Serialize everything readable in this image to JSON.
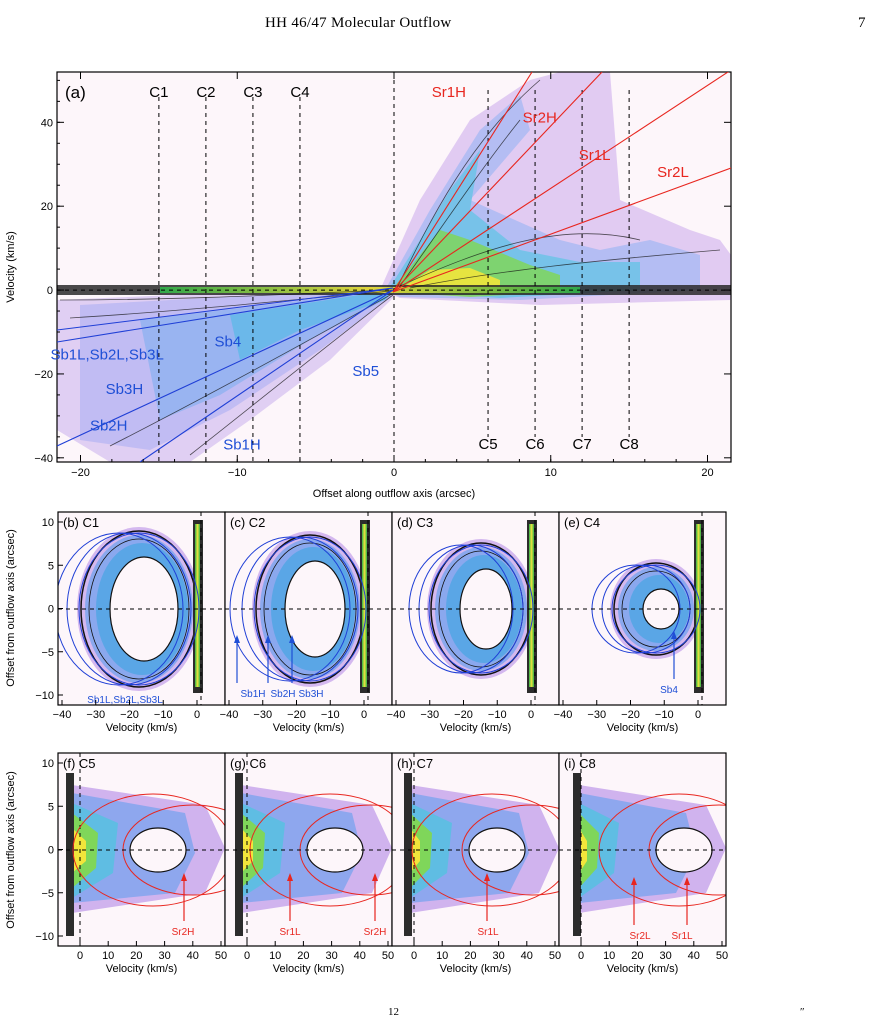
{
  "header": {
    "running_head": "HH 46/47 Molecular Outflow",
    "page_number": "7"
  },
  "caption_fragments": [
    "12",
    "″"
  ],
  "colors": {
    "red_model": "#e8261f",
    "blue_model": "#1f3fd6",
    "label_red": "#e8261f",
    "label_blue": "#1f4fd6"
  },
  "panel_a": {
    "tag": "(a)",
    "xlabel": "Offset along outflow axis (arcsec)",
    "ylabel": "Velocity (km/s)",
    "xlim": [
      -21.5,
      21.5
    ],
    "ylim": [
      -41,
      52
    ],
    "xticks": [
      -20,
      -10,
      0,
      10,
      20
    ],
    "yticks": [
      -40,
      -20,
      0,
      20,
      40
    ],
    "cut_labels": [
      {
        "name": "C1",
        "x": -15
      },
      {
        "name": "C2",
        "x": -12
      },
      {
        "name": "C3",
        "x": -9
      },
      {
        "name": "C4",
        "x": -6
      },
      {
        "name": "C5",
        "x": 6
      },
      {
        "name": "C6",
        "x": 9
      },
      {
        "name": "C7",
        "x": 12
      },
      {
        "name": "C8",
        "x": 15
      }
    ],
    "red_labels": [
      {
        "text": "Sr1H",
        "x": 3.5,
        "y": 46
      },
      {
        "text": "Sr2H",
        "x": 9.3,
        "y": 40
      },
      {
        "text": "Sr1L",
        "x": 12.8,
        "y": 31
      },
      {
        "text": "Sr2L",
        "x": 17.8,
        "y": 27
      }
    ],
    "blue_labels": [
      {
        "text": "Sb1L,Sb2L,Sb3L",
        "x": -18.3,
        "y": -16.5
      },
      {
        "text": "Sb4",
        "x": -10.6,
        "y": -13.5
      },
      {
        "text": "Sb5",
        "x": -1.8,
        "y": -20.5
      },
      {
        "text": "Sb3H",
        "x": -17.2,
        "y": -24.8
      },
      {
        "text": "Sb2H",
        "x": -18.2,
        "y": -33.5
      },
      {
        "text": "Sb1H",
        "x": -9.7,
        "y": -38
      }
    ]
  },
  "cut_panels_top": [
    {
      "tag": "(b) C1",
      "labels": [
        "Sb1L,Sb2L,Sb3L"
      ]
    },
    {
      "tag": "(c) C2",
      "labels": [
        "Sb1H",
        "Sb2H",
        "Sb3H"
      ]
    },
    {
      "tag": "(d) C3",
      "labels": []
    },
    {
      "tag": "(e) C4",
      "labels": [
        "Sb4"
      ]
    }
  ],
  "cut_panels_bottom": [
    {
      "tag": "(f) C5",
      "labels": [
        "Sr2H"
      ]
    },
    {
      "tag": "(g) C6",
      "labels": [
        "Sr1L",
        "Sr2H"
      ]
    },
    {
      "tag": "(h) C7",
      "labels": [
        "Sr1L"
      ]
    },
    {
      "tag": "(i) C8",
      "labels": [
        "Sr2L",
        "Sr1L"
      ]
    }
  ],
  "cut_axes": {
    "xlabel": "Velocity (km/s)",
    "ylabel": "Offset from outflow axis (arcsec)",
    "top_xticks": [
      "−40",
      "−30",
      "−20",
      "−10",
      "0"
    ],
    "bottom_xticks": [
      "0",
      "10",
      "20",
      "30",
      "40",
      "50"
    ],
    "yticks": [
      "−10",
      "−5",
      "0",
      "5",
      "10"
    ]
  }
}
